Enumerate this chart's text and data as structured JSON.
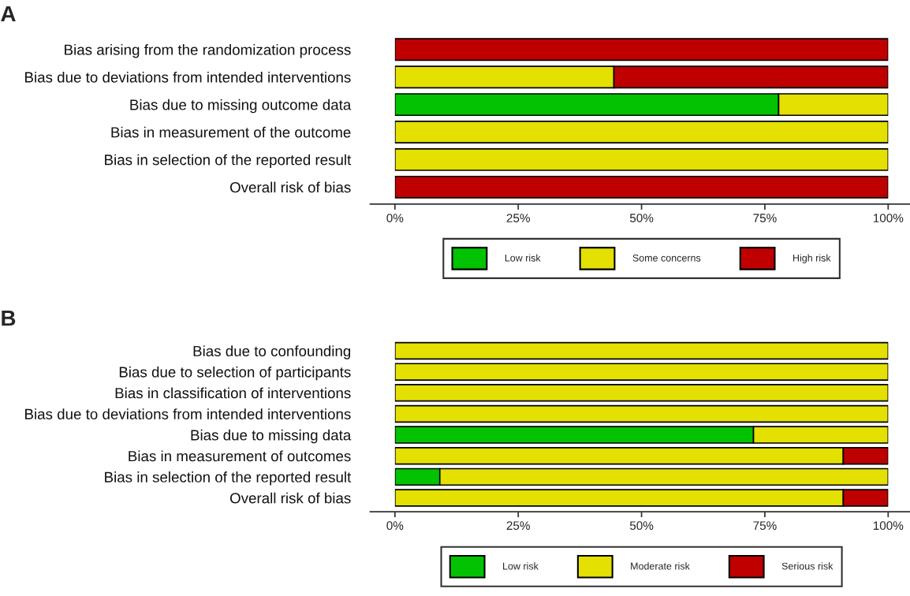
{
  "chart_data": [
    {
      "type": "bar",
      "title": "A",
      "orientation": "horizontal",
      "stacked": true,
      "categories": [
        "Bias arising from the randomization process",
        "Bias due to deviations from intended interventions",
        "Bias due to missing outcome data",
        "Bias in measurement of the outcome",
        "Bias in selection of the reported result",
        "Overall risk of bias"
      ],
      "series": [
        {
          "name": "Low risk",
          "color": "#02c202",
          "values": [
            0,
            0,
            77.8,
            0,
            0,
            0
          ]
        },
        {
          "name": "Some concerns",
          "color": "#e3e002",
          "values": [
            0,
            44.4,
            22.2,
            100,
            100,
            0
          ]
        },
        {
          "name": "High risk",
          "color": "#bf0000",
          "values": [
            100,
            55.6,
            0,
            0,
            0,
            100
          ]
        }
      ],
      "xlim": [
        0,
        100
      ],
      "xticks": [
        {
          "value": 0,
          "label": "0%"
        },
        {
          "value": 25,
          "label": "25%"
        },
        {
          "value": 50,
          "label": "50%"
        },
        {
          "value": 75,
          "label": "75%"
        },
        {
          "value": 100,
          "label": "100%"
        }
      ],
      "legend": "bottom",
      "grid": false
    },
    {
      "type": "bar",
      "title": "B",
      "orientation": "horizontal",
      "stacked": true,
      "categories": [
        "Bias due to confounding",
        "Bias due to selection of participants",
        "Bias in classification of interventions",
        "Bias due to deviations from intended interventions",
        "Bias due to missing data",
        "Bias in measurement of outcomes",
        "Bias in selection of the reported result",
        "Overall risk of bias"
      ],
      "series": [
        {
          "name": "Low risk",
          "color": "#02c202",
          "values": [
            0,
            0,
            0,
            0,
            72.7,
            0,
            9.1,
            0
          ]
        },
        {
          "name": "Moderate risk",
          "color": "#e3e002",
          "values": [
            100,
            100,
            100,
            100,
            27.3,
            90.9,
            90.9,
            90.9
          ]
        },
        {
          "name": "Serious risk",
          "color": "#bf0000",
          "values": [
            0,
            0,
            0,
            0,
            0,
            9.1,
            0,
            9.1
          ]
        }
      ],
      "xlim": [
        0,
        100
      ],
      "xticks": [
        {
          "value": 0,
          "label": "0%"
        },
        {
          "value": 25,
          "label": "25%"
        },
        {
          "value": 50,
          "label": "50%"
        },
        {
          "value": 75,
          "label": "75%"
        },
        {
          "value": 100,
          "label": "100%"
        }
      ],
      "legend": "bottom",
      "grid": false
    }
  ]
}
